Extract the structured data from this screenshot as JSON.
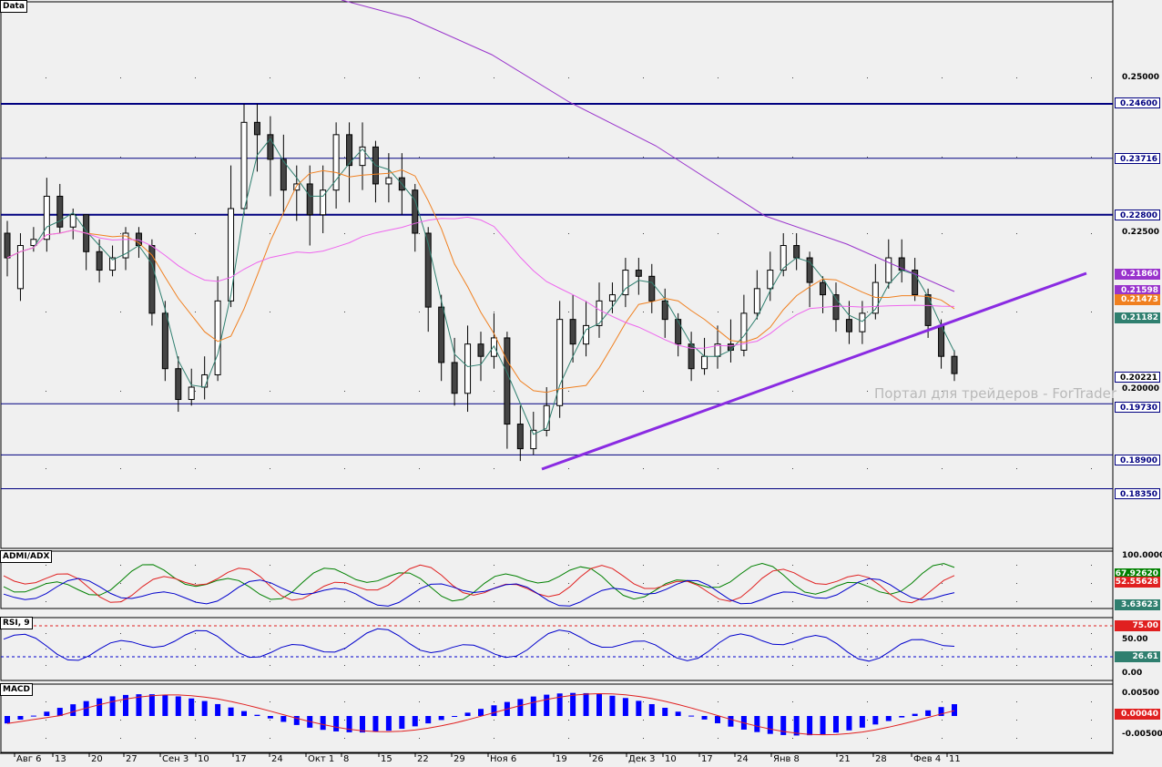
{
  "panels": {
    "main": "Data",
    "adx": "ADMI/ADX",
    "rsi": "RSI, 9",
    "macd": "MACD"
  },
  "watermark": "Портал для трейдеров - ForTrader",
  "x_labels": [
    "Авг 6",
    "13",
    "20",
    "27",
    "Сен 3",
    "10",
    "17",
    "24",
    "Окт 1",
    "8",
    "15",
    "22",
    "29",
    "Ноя 6",
    "19",
    "26",
    "Дек 3",
    "10",
    "17",
    "24",
    "Янв 8",
    "21",
    "28",
    "Фев 4",
    "11"
  ],
  "price_axis": {
    "ticks": [
      "0.25000",
      "0.22500",
      "0.20000"
    ],
    "labels": [
      {
        "text": "0.24600",
        "bg": "#ffffff",
        "fg": "#000080"
      },
      {
        "text": "0.23716",
        "bg": "#ffffff",
        "fg": "#000080"
      },
      {
        "text": "0.22800",
        "bg": "#ffffff",
        "fg": "#000080"
      },
      {
        "text": "0.21860",
        "bg": "#9933cc",
        "fg": "#ffffff"
      },
      {
        "text": "0.21598",
        "bg": "#9933cc",
        "fg": "#ffffff"
      },
      {
        "text": "0.21473",
        "bg": "#f08020",
        "fg": "#ffffff"
      },
      {
        "text": "0.21182",
        "bg": "#2f7f6f",
        "fg": "#ffffff"
      },
      {
        "text": "0.20221",
        "bg": "#ffffff",
        "fg": "#000000"
      },
      {
        "text": "0.19730",
        "bg": "#ffffff",
        "fg": "#000080"
      },
      {
        "text": "0.18900",
        "bg": "#ffffff",
        "fg": "#000080"
      },
      {
        "text": "0.18350",
        "bg": "#ffffff",
        "fg": "#000080"
      }
    ]
  },
  "adx_axis": {
    "ticks": [
      "100.0000"
    ],
    "labels": [
      {
        "text": "67.92620",
        "bg": "#008000",
        "fg": "#ffffff"
      },
      {
        "text": "52.55628",
        "bg": "#e02020",
        "fg": "#ffffff"
      },
      {
        "text": "3.63623",
        "bg": "#2f7f6f",
        "fg": "#ffffff"
      }
    ]
  },
  "rsi_axis": {
    "ticks": [
      "50.00",
      "0.00"
    ],
    "labels": [
      {
        "text": "75.00",
        "bg": "#e02020",
        "fg": "#ffffff"
      },
      {
        "text": "26.61",
        "bg": "#2f7f6f",
        "fg": "#ffffff"
      }
    ]
  },
  "macd_axis": {
    "ticks": [
      "0.00500",
      "-0.00500"
    ],
    "labels": [
      {
        "text": "0.00040",
        "bg": "#e02020",
        "fg": "#ffffff"
      }
    ]
  },
  "colors": {
    "bg": "#f0f0f0",
    "line": "#000080",
    "ma10": "#2f7f6f",
    "ma20": "#f08020",
    "ma50": "#ee66ee",
    "ma200": "#9933cc",
    "plus_di": "#008000",
    "minus_di": "#e02020",
    "adx": "#0000cc",
    "macd_hist": "#0000ff",
    "macd_signal": "#e02020"
  },
  "chart_data": {
    "type": "candlestick",
    "levels": [
      0.246,
      0.23716,
      0.228,
      0.1973,
      0.189,
      0.1835
    ],
    "trendline": [
      {
        "x": "Ноя 13",
        "y": 0.1885
      },
      {
        "x": "Фев 11",
        "y": 0.2186
      }
    ],
    "last_price": 0.20221,
    "candles_ohlc": [
      [
        0.225,
        0.221,
        0.227,
        0.218
      ],
      [
        0.216,
        0.223,
        0.225,
        0.214
      ],
      [
        0.223,
        0.224,
        0.226,
        0.222
      ],
      [
        0.224,
        0.231,
        0.234,
        0.222
      ],
      [
        0.231,
        0.226,
        0.233,
        0.225
      ],
      [
        0.226,
        0.228,
        0.229,
        0.224
      ],
      [
        0.228,
        0.222,
        0.228,
        0.219
      ],
      [
        0.222,
        0.219,
        0.224,
        0.217
      ],
      [
        0.219,
        0.221,
        0.223,
        0.218
      ],
      [
        0.221,
        0.225,
        0.226,
        0.219
      ],
      [
        0.225,
        0.223,
        0.226,
        0.221
      ],
      [
        0.223,
        0.212,
        0.224,
        0.21
      ],
      [
        0.212,
        0.203,
        0.214,
        0.201
      ],
      [
        0.203,
        0.198,
        0.205,
        0.196
      ],
      [
        0.198,
        0.2,
        0.203,
        0.197
      ],
      [
        0.2,
        0.202,
        0.205,
        0.198
      ],
      [
        0.202,
        0.214,
        0.218,
        0.201
      ],
      [
        0.214,
        0.229,
        0.236,
        0.213
      ],
      [
        0.229,
        0.243,
        0.246,
        0.228
      ],
      [
        0.243,
        0.241,
        0.246,
        0.235
      ],
      [
        0.241,
        0.237,
        0.244,
        0.231
      ],
      [
        0.237,
        0.232,
        0.241,
        0.228
      ],
      [
        0.232,
        0.233,
        0.236,
        0.227
      ],
      [
        0.233,
        0.228,
        0.236,
        0.223
      ],
      [
        0.228,
        0.232,
        0.236,
        0.225
      ],
      [
        0.232,
        0.241,
        0.243,
        0.229
      ],
      [
        0.241,
        0.236,
        0.243,
        0.23
      ],
      [
        0.236,
        0.239,
        0.243,
        0.232
      ],
      [
        0.239,
        0.233,
        0.24,
        0.23
      ],
      [
        0.233,
        0.234,
        0.238,
        0.23
      ],
      [
        0.234,
        0.232,
        0.238,
        0.228
      ],
      [
        0.232,
        0.225,
        0.233,
        0.222
      ],
      [
        0.225,
        0.213,
        0.226,
        0.209
      ],
      [
        0.213,
        0.204,
        0.215,
        0.201
      ],
      [
        0.204,
        0.199,
        0.208,
        0.197
      ],
      [
        0.199,
        0.207,
        0.21,
        0.196
      ],
      [
        0.207,
        0.205,
        0.209,
        0.201
      ],
      [
        0.205,
        0.208,
        0.212,
        0.203
      ],
      [
        0.208,
        0.194,
        0.209,
        0.19
      ],
      [
        0.194,
        0.19,
        0.197,
        0.188
      ],
      [
        0.19,
        0.193,
        0.196,
        0.189
      ],
      [
        0.193,
        0.197,
        0.2,
        0.192
      ],
      [
        0.197,
        0.211,
        0.214,
        0.195
      ],
      [
        0.211,
        0.207,
        0.215,
        0.204
      ],
      [
        0.207,
        0.21,
        0.214,
        0.205
      ],
      [
        0.21,
        0.214,
        0.217,
        0.208
      ],
      [
        0.214,
        0.215,
        0.217,
        0.212
      ],
      [
        0.215,
        0.219,
        0.221,
        0.213
      ],
      [
        0.219,
        0.218,
        0.221,
        0.215
      ],
      [
        0.218,
        0.214,
        0.22,
        0.212
      ],
      [
        0.214,
        0.211,
        0.216,
        0.208
      ],
      [
        0.211,
        0.207,
        0.212,
        0.205
      ],
      [
        0.207,
        0.203,
        0.209,
        0.201
      ],
      [
        0.203,
        0.205,
        0.208,
        0.202
      ],
      [
        0.205,
        0.207,
        0.21,
        0.203
      ],
      [
        0.207,
        0.206,
        0.211,
        0.204
      ],
      [
        0.206,
        0.212,
        0.215,
        0.205
      ],
      [
        0.212,
        0.216,
        0.219,
        0.211
      ],
      [
        0.216,
        0.219,
        0.222,
        0.214
      ],
      [
        0.219,
        0.223,
        0.225,
        0.218
      ],
      [
        0.223,
        0.221,
        0.225,
        0.219
      ],
      [
        0.221,
        0.217,
        0.222,
        0.213
      ],
      [
        0.217,
        0.215,
        0.218,
        0.212
      ],
      [
        0.215,
        0.211,
        0.217,
        0.209
      ],
      [
        0.211,
        0.209,
        0.214,
        0.207
      ],
      [
        0.209,
        0.212,
        0.214,
        0.207
      ],
      [
        0.212,
        0.217,
        0.22,
        0.211
      ],
      [
        0.217,
        0.221,
        0.224,
        0.216
      ],
      [
        0.221,
        0.219,
        0.224,
        0.217
      ],
      [
        0.219,
        0.215,
        0.221,
        0.214
      ],
      [
        0.215,
        0.21,
        0.216,
        0.208
      ],
      [
        0.21,
        0.205,
        0.211,
        0.203
      ],
      [
        0.205,
        0.2022,
        0.206,
        0.201
      ]
    ]
  }
}
